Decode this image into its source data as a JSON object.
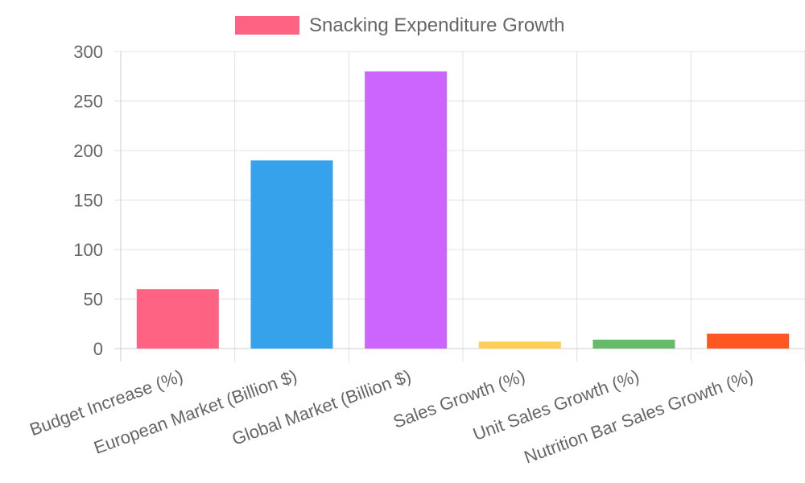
{
  "chart_data": {
    "type": "bar",
    "categories": [
      "Budget Increase (%)",
      "European Market (Billion $)",
      "Global Market (Billion $)",
      "Sales Growth (%)",
      "Unit Sales Growth (%)",
      "Nutrition Bar Sales Growth (%)"
    ],
    "series": [
      {
        "name": "Snacking Expenditure Growth",
        "values": [
          60,
          190,
          280,
          7,
          9,
          15
        ]
      }
    ],
    "colors": [
      "#ff6384",
      "#36a2eb",
      "#cc65fe",
      "#ffce56",
      "#66bb6a",
      "#ff5722"
    ],
    "legend_color": "#ff6384",
    "ylim": [
      0,
      300
    ],
    "yticks": [
      0,
      50,
      100,
      150,
      200,
      250,
      300
    ],
    "grid": true,
    "legend": "top"
  }
}
